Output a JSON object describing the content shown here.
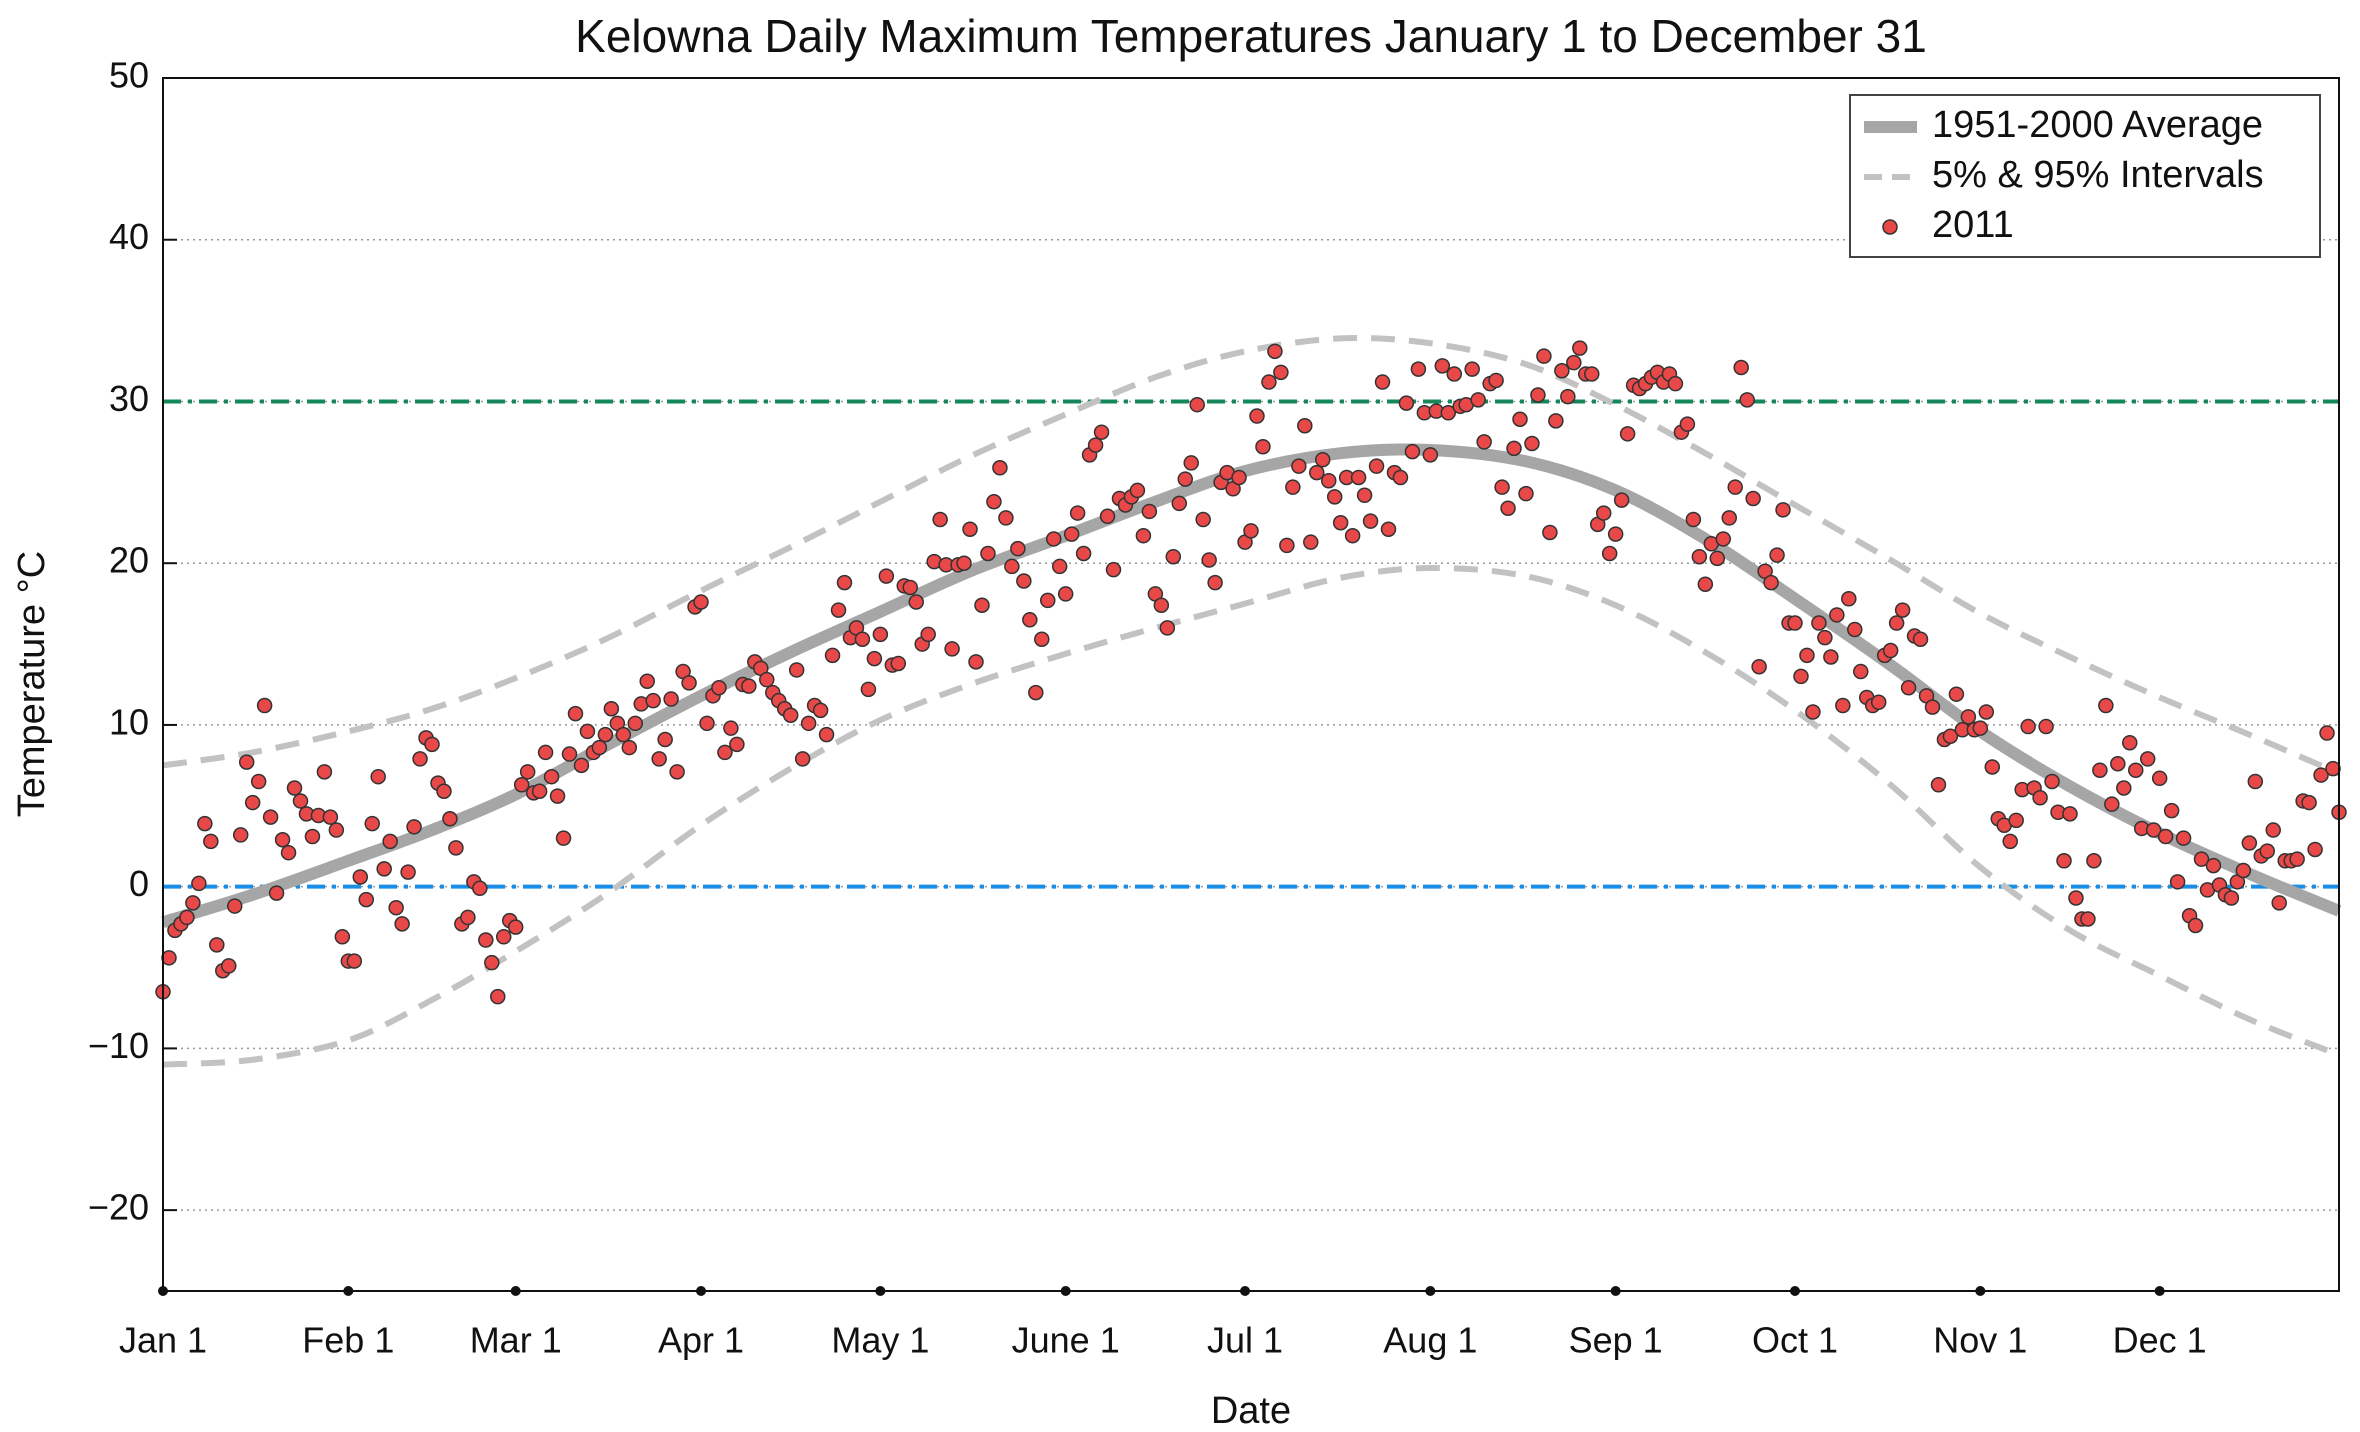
{
  "chart_data": {
    "type": "line",
    "title": "Kelowna Daily Maximum Temperatures January 1 to December 31",
    "x_label": "Date",
    "y_label": "Temperature °C",
    "xlim": [
      0,
      364
    ],
    "ylim": [
      -25,
      50
    ],
    "xticks": [
      {
        "value": 0,
        "label": "Jan 1"
      },
      {
        "value": 31,
        "label": "Feb 1"
      },
      {
        "value": 59,
        "label": "Mar 1"
      },
      {
        "value": 90,
        "label": "Apr 1"
      },
      {
        "value": 120,
        "label": "May 1"
      },
      {
        "value": 151,
        "label": "June 1"
      },
      {
        "value": 181,
        "label": "Jul 1"
      },
      {
        "value": 212,
        "label": "Aug 1"
      },
      {
        "value": 243,
        "label": "Sep 1"
      },
      {
        "value": 273,
        "label": "Oct 1"
      },
      {
        "value": 304,
        "label": "Nov 1"
      },
      {
        "value": 334,
        "label": "Dec 1"
      }
    ],
    "yticks": [
      {
        "value": -20,
        "label": "−20"
      },
      {
        "value": -10,
        "label": "−10"
      },
      0,
      10,
      20,
      30,
      40,
      50
    ],
    "grid": true,
    "legend": "upper right",
    "reference_lines": [
      {
        "value": 30,
        "color": "#16875a"
      },
      {
        "value": 0,
        "color": "#1a8ee6"
      }
    ],
    "series": [
      {
        "name": "1951-2000 Average",
        "type": "line",
        "color": "#a6a6a6",
        "x": [
          0,
          15,
          31,
          45,
          59,
          74,
          90,
          105,
          120,
          135,
          151,
          166,
          181,
          197,
          212,
          228,
          243,
          258,
          273,
          289,
          304,
          319,
          334,
          349,
          364
        ],
        "values": [
          -2.2,
          -0.5,
          1.6,
          3.5,
          5.7,
          8.7,
          11.8,
          14.5,
          17,
          19.5,
          21.7,
          23.8,
          25.7,
          26.8,
          27,
          26.3,
          24.5,
          21.5,
          17.8,
          13.7,
          9.6,
          6.2,
          3.3,
          0.8,
          -1.5
        ]
      },
      {
        "name": "5% & 95% Intervals",
        "type": "interval",
        "color": "#c2c2c2",
        "x": [
          0,
          15,
          31,
          45,
          59,
          74,
          90,
          105,
          120,
          135,
          151,
          166,
          181,
          197,
          212,
          228,
          243,
          258,
          273,
          289,
          304,
          319,
          334,
          349,
          364
        ],
        "lower": [
          -11,
          -10.7,
          -9.5,
          -7,
          -4,
          -0.5,
          3.8,
          7.3,
          10.3,
          12.5,
          14.4,
          16,
          17.5,
          19.1,
          19.7,
          19.2,
          17.4,
          14.5,
          10.9,
          6.3,
          1.2,
          -2.7,
          -5.5,
          -8.2,
          -10.4
        ],
        "upper": [
          7.5,
          8.3,
          9.6,
          11,
          12.9,
          15.3,
          18.3,
          21,
          23.8,
          26.6,
          29.2,
          31.5,
          33.1,
          33.9,
          33.6,
          32.3,
          29.8,
          26.8,
          23.6,
          20.2,
          16.9,
          14.2,
          11.7,
          9.4,
          7
        ]
      },
      {
        "name": "2011",
        "type": "scatter",
        "color": "#e84848",
        "x": [
          0,
          1,
          2,
          3,
          4,
          5,
          6,
          7,
          8,
          9,
          10,
          11,
          12,
          13,
          14,
          15,
          16,
          17,
          18,
          19,
          20,
          21,
          22,
          23,
          24,
          25,
          26,
          27,
          28,
          29,
          30,
          31,
          32,
          33,
          34,
          35,
          36,
          37,
          38,
          39,
          40,
          41,
          42,
          43,
          44,
          45,
          46,
          47,
          48,
          49,
          50,
          51,
          52,
          53,
          54,
          55,
          56,
          57,
          58,
          59,
          60,
          61,
          62,
          63,
          64,
          65,
          66,
          67,
          68,
          69,
          70,
          71,
          72,
          73,
          74,
          75,
          76,
          77,
          78,
          79,
          80,
          81,
          82,
          83,
          84,
          85,
          86,
          87,
          88,
          89,
          90,
          91,
          92,
          93,
          94,
          95,
          96,
          97,
          98,
          99,
          100,
          101,
          102,
          103,
          104,
          105,
          106,
          107,
          108,
          109,
          110,
          111,
          112,
          113,
          114,
          115,
          116,
          117,
          118,
          119,
          120,
          121,
          122,
          123,
          124,
          125,
          126,
          127,
          128,
          129,
          130,
          131,
          132,
          133,
          134,
          135,
          136,
          137,
          138,
          139,
          140,
          141,
          142,
          143,
          144,
          145,
          146,
          147,
          148,
          149,
          150,
          151,
          152,
          153,
          154,
          155,
          156,
          157,
          158,
          159,
          160,
          161,
          162,
          163,
          164,
          165,
          166,
          167,
          168,
          169,
          170,
          171,
          172,
          173,
          174,
          175,
          176,
          177,
          178,
          179,
          180,
          181,
          182,
          183,
          184,
          185,
          186,
          187,
          188,
          189,
          190,
          191,
          192,
          193,
          194,
          195,
          196,
          197,
          198,
          199,
          200,
          201,
          202,
          203,
          204,
          205,
          206,
          207,
          208,
          209,
          210,
          211,
          212,
          213,
          214,
          215,
          216,
          217,
          218,
          219,
          220,
          221,
          222,
          223,
          224,
          225,
          226,
          227,
          228,
          229,
          230,
          231,
          232,
          233,
          234,
          235,
          236,
          237,
          238,
          239,
          240,
          241,
          242,
          243,
          244,
          245,
          246,
          247,
          248,
          249,
          250,
          251,
          252,
          253,
          254,
          255,
          256,
          257,
          258,
          259,
          260,
          261,
          262,
          263,
          264,
          265,
          266,
          267,
          268,
          269,
          270,
          271,
          272,
          273,
          274,
          275,
          276,
          277,
          278,
          279,
          280,
          281,
          282,
          283,
          284,
          285,
          286,
          287,
          288,
          289,
          290,
          291,
          292,
          293,
          294,
          295,
          296,
          297,
          298,
          299,
          300,
          301,
          302,
          303,
          304,
          305,
          306,
          307,
          308,
          309,
          310,
          311,
          312,
          313,
          314,
          315,
          316,
          317,
          318,
          319,
          320,
          321,
          322,
          323,
          324,
          325,
          326,
          327,
          328,
          329,
          330,
          331,
          332,
          333,
          334,
          335,
          336,
          337,
          338,
          339,
          340,
          341,
          342,
          343,
          344,
          345,
          346,
          347,
          348,
          349,
          350,
          351,
          352,
          353,
          354,
          355,
          356,
          357,
          358,
          359,
          360,
          361,
          362,
          363,
          364
        ],
        "values": [
          -6.5,
          -4.4,
          -2.7,
          -2.3,
          -1.9,
          -1,
          0.2,
          3.9,
          2.8,
          -3.6,
          -5.2,
          -4.9,
          -1.2,
          3.2,
          7.7,
          5.2,
          6.5,
          11.2,
          4.3,
          -0.4,
          2.9,
          2.1,
          6.1,
          5.3,
          4.5,
          3.1,
          4.4,
          7.1,
          4.3,
          3.5,
          -3.1,
          -4.6,
          -4.6,
          0.6,
          -0.8,
          3.9,
          6.8,
          1.1,
          2.8,
          -1.3,
          -2.3,
          0.9,
          3.7,
          7.9,
          9.2,
          8.8,
          6.4,
          5.9,
          4.2,
          2.4,
          -2.3,
          -1.9,
          0.3,
          -0.1,
          -3.3,
          -4.7,
          -6.8,
          -3.1,
          -2.1,
          -2.5,
          6.3,
          7.1,
          5.8,
          5.9,
          8.3,
          6.8,
          5.6,
          3.0,
          8.2,
          10.7,
          7.5,
          9.6,
          8.3,
          8.6,
          9.4,
          11,
          10.1,
          9.4,
          8.6,
          10.1,
          11.3,
          12.7,
          11.5,
          7.9,
          9.1,
          11.6,
          7.1,
          13.3,
          12.6,
          17.3,
          17.6,
          10.1,
          11.8,
          12.3,
          8.3,
          9.8,
          8.8,
          12.5,
          12.4,
          13.9,
          13.5,
          12.8,
          12,
          11.5,
          11,
          10.6,
          13.4,
          7.9,
          10.1,
          11.2,
          10.9,
          9.4,
          14.3,
          17.1,
          18.8,
          15.4,
          16,
          15.3,
          12.2,
          14.1,
          15.6,
          19.2,
          13.7,
          13.8,
          18.6,
          18.5,
          17.6,
          15,
          15.6,
          20.1,
          22.7,
          19.9,
          14.7,
          19.9,
          20,
          22.1,
          13.9,
          17.4,
          20.6,
          23.8,
          25.9,
          22.8,
          19.8,
          20.9,
          18.9,
          16.5,
          12,
          15.3,
          17.7,
          21.5,
          19.8,
          18.1,
          21.8,
          23.1,
          20.6,
          26.7,
          27.3,
          28.1,
          22.9,
          19.6,
          24,
          23.6,
          24.1,
          24.5,
          21.7,
          23.2,
          18.1,
          17.4,
          16,
          20.4,
          23.7,
          25.2,
          26.2,
          29.8,
          22.7,
          20.2,
          18.8,
          25,
          25.6,
          24.6,
          25.3,
          21.3,
          22,
          29.1,
          27.2,
          31.2,
          33.1,
          31.8,
          21.1,
          24.7,
          26,
          28.5,
          21.3,
          25.6,
          26.4,
          25.1,
          24.1,
          22.5,
          25.3,
          21.7,
          25.3,
          24.2,
          22.6,
          26,
          31.2,
          22.1,
          25.6,
          25.3,
          29.9,
          26.9,
          32,
          29.3,
          26.7,
          29.4,
          32.2,
          29.3,
          31.7,
          29.7,
          29.8,
          32,
          30.1,
          27.5,
          31.1,
          31.3,
          24.7,
          23.4,
          27.1,
          28.9,
          24.3,
          27.4,
          30.4,
          32.8,
          21.9,
          28.8,
          31.9,
          30.3,
          32.4,
          33.3,
          31.7,
          31.7,
          22.4,
          23.1,
          20.6,
          21.8,
          23.9,
          28,
          31,
          30.8,
          31.1,
          31.5,
          31.8,
          31.2,
          31.7,
          31.1,
          28.1,
          28.6,
          22.7,
          20.4,
          18.7,
          21.2,
          20.3,
          21.5,
          22.8,
          24.7,
          32.1,
          30.1,
          24,
          13.6,
          19.5,
          18.8,
          20.5,
          23.3,
          16.3,
          16.3,
          13,
          14.3,
          10.8,
          16.3,
          15.4,
          14.2,
          16.8,
          11.2,
          17.8,
          15.9,
          13.3,
          11.7,
          11.2,
          11.4,
          14.3,
          14.6,
          16.3,
          17.1,
          12.3,
          15.5,
          15.3,
          11.8,
          11.1,
          6.3,
          9.1,
          9.3,
          11.9,
          9.7,
          10.5,
          9.7,
          9.8,
          10.8,
          7.4,
          4.2,
          3.8,
          2.8,
          4.1,
          6,
          9.9,
          6.1,
          5.5,
          9.9,
          6.5,
          4.6,
          1.6,
          4.5,
          -0.7,
          -2,
          -2,
          1.6,
          7.2,
          11.2,
          5.1,
          7.6,
          6.1,
          8.9,
          7.2,
          3.6,
          7.9,
          3.5,
          6.7,
          3.1,
          4.7,
          0.3,
          3,
          -1.8,
          -2.4,
          1.7,
          -0.2,
          1.3,
          0.1,
          -0.5,
          -0.7,
          0.3,
          1,
          2.7,
          6.5,
          1.9,
          2.2,
          3.5,
          -1,
          1.6,
          1.6,
          1.7,
          5.3,
          5.2,
          2.3,
          6.9,
          9.5,
          7.3,
          4.6
        ]
      }
    ]
  }
}
